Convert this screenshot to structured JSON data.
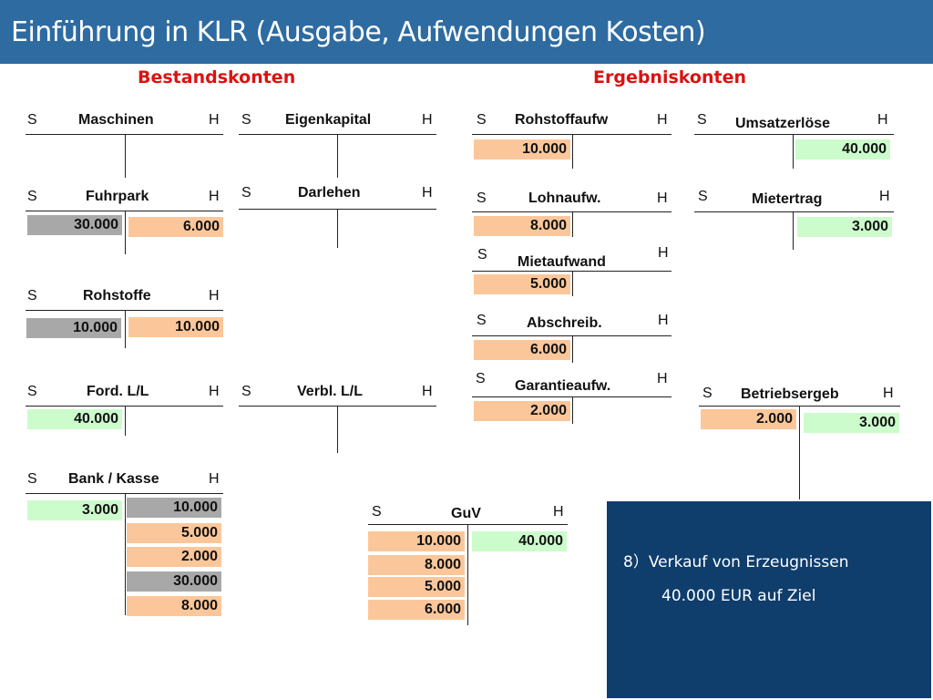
{
  "title": "Einführung in KLR (Ausgabe, Aufwendungen Kosten)",
  "sections": {
    "bestand": "Bestandskonten",
    "ergebnis": "Ergebniskonten"
  },
  "labels": {
    "soll": "S",
    "haben": "H"
  },
  "colors": {
    "title_bar": "#2e6ba1",
    "section_heading": "#dd1111",
    "orange_entry": "#fbc79a",
    "grey_entry": "#a8a8a8",
    "green_entry": "#ccfbcc",
    "info_box": "#0f3d6c"
  },
  "accounts": {
    "maschinen": {
      "name": "Maschinen",
      "soll": [],
      "haben": []
    },
    "fuhrpark": {
      "name": "Fuhrpark",
      "soll": [
        "30.000"
      ],
      "haben": [
        "6.000"
      ]
    },
    "rohstoffe": {
      "name": "Rohstoffe",
      "soll": [
        "10.000"
      ],
      "haben": [
        "10.000"
      ]
    },
    "ford": {
      "name": "Ford. L/L",
      "soll": [
        "40.000"
      ],
      "haben": []
    },
    "bank": {
      "name": "Bank / Kasse",
      "soll": [
        "3.000"
      ],
      "haben": [
        "10.000",
        "5.000",
        "2.000",
        "30.000",
        "8.000"
      ]
    },
    "eigenkapital": {
      "name": "Eigenkapital",
      "soll": [],
      "haben": []
    },
    "darlehen": {
      "name": "Darlehen",
      "soll": [],
      "haben": []
    },
    "verbl": {
      "name": "Verbl. L/L",
      "soll": [],
      "haben": []
    },
    "rohstoffaufw": {
      "name": "Rohstoffaufw",
      "soll": [
        "10.000"
      ],
      "haben": []
    },
    "lohnaufw": {
      "name": "Lohnaufw.",
      "soll": [
        "8.000"
      ],
      "haben": []
    },
    "mietaufwand": {
      "name": "Mietaufwand",
      "soll": [
        "5.000"
      ],
      "haben": []
    },
    "abschreib": {
      "name": "Abschreib.",
      "soll": [
        "6.000"
      ],
      "haben": []
    },
    "garantie": {
      "name": "Garantieaufw.",
      "soll": [
        "2.000"
      ],
      "haben": []
    },
    "umsatz": {
      "name": "Umsatzerlöse",
      "soll": [],
      "haben": [
        "40.000"
      ]
    },
    "miet": {
      "name": "Mietertrag",
      "soll": [],
      "haben": [
        "3.000"
      ]
    },
    "betrieb": {
      "name": "Betriebsergeb",
      "soll": [
        "2.000"
      ],
      "haben": [
        "3.000"
      ]
    },
    "guv": {
      "name": "GuV",
      "soll": [
        "10.000",
        "8.000",
        "5.000",
        "6.000"
      ],
      "haben": [
        "40.000"
      ]
    }
  },
  "info": {
    "line1": "8）Verkauf von Erzeugnissen",
    "line2": "40.000 EUR auf Ziel"
  }
}
